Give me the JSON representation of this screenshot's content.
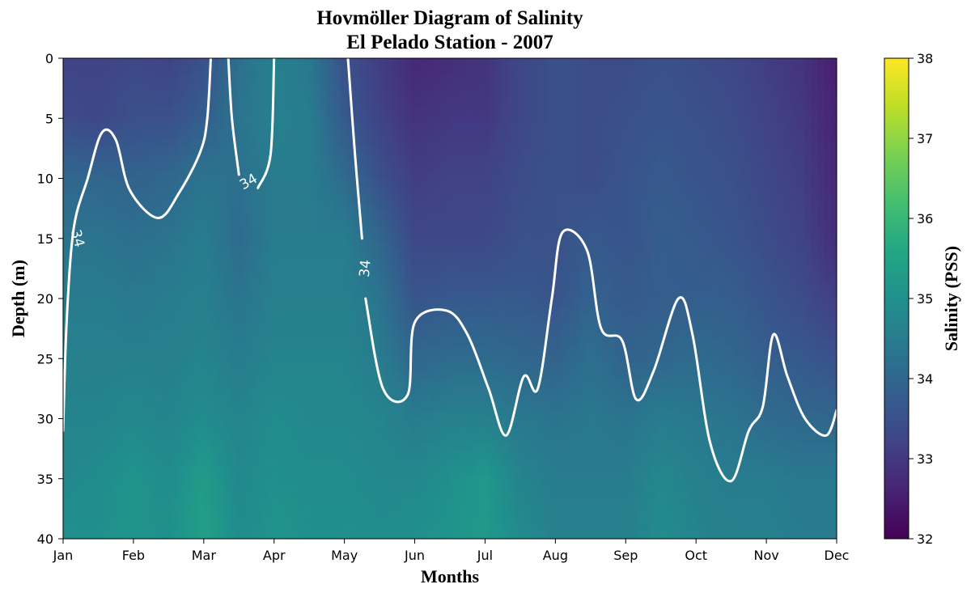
{
  "chart_data": {
    "type": "heatmap",
    "title": "Hovmöller Diagram of Salinity",
    "subtitle": "El Pelado Station - 2007",
    "xlabel": "Months",
    "ylabel": "Depth (m)",
    "colorbar_label": "Salinity (PSS)",
    "colormap": "viridis",
    "x_categories": [
      "Jan",
      "Feb",
      "Mar",
      "Apr",
      "May",
      "Jun",
      "Jul",
      "Aug",
      "Sep",
      "Oct",
      "Nov",
      "Dec"
    ],
    "xlim": [
      0,
      11
    ],
    "ylim": [
      40,
      0
    ],
    "y_ticks": [
      0,
      5,
      10,
      15,
      20,
      25,
      30,
      35,
      40
    ],
    "colorbar_range": [
      32,
      38
    ],
    "colorbar_ticks": [
      32,
      33,
      34,
      35,
      36,
      37,
      38
    ],
    "salinity_field": {
      "x": [
        0,
        0.5,
        1,
        1.5,
        2,
        2.5,
        3,
        3.5,
        4,
        4.5,
        5,
        5.5,
        6,
        6.5,
        7,
        7.5,
        8,
        8.5,
        9,
        9.5,
        10,
        10.5,
        11
      ],
      "depth": [
        0,
        5,
        10,
        15,
        20,
        25,
        30,
        35,
        40
      ],
      "values": [
        [
          33.2,
          33.2,
          33.3,
          33.2,
          33.5,
          34.2,
          34.6,
          34.4,
          33.5,
          33.1,
          32.7,
          32.8,
          32.9,
          33.3,
          33.5,
          33.4,
          33.4,
          33.5,
          33.4,
          33.3,
          33.1,
          32.9,
          32.5
        ],
        [
          33.4,
          33.3,
          33.5,
          33.5,
          33.8,
          34.3,
          34.6,
          34.5,
          33.7,
          33.2,
          32.9,
          33.0,
          33.0,
          33.3,
          33.5,
          33.4,
          33.5,
          33.6,
          33.5,
          33.4,
          33.2,
          33.0,
          32.6
        ],
        [
          34.0,
          34.0,
          33.9,
          34.0,
          34.3,
          34.2,
          34.5,
          34.5,
          34.1,
          33.5,
          33.1,
          33.2,
          33.2,
          33.4,
          33.5,
          33.4,
          33.6,
          33.7,
          33.6,
          33.5,
          33.3,
          33.1,
          32.7
        ],
        [
          34.3,
          34.3,
          34.2,
          34.3,
          34.5,
          34.1,
          34.5,
          34.5,
          34.5,
          34.0,
          33.3,
          33.3,
          33.3,
          33.5,
          33.5,
          33.7,
          33.6,
          33.8,
          33.7,
          33.6,
          33.4,
          33.2,
          32.8
        ],
        [
          34.5,
          34.5,
          34.4,
          34.5,
          34.6,
          34.3,
          34.6,
          34.6,
          34.6,
          34.3,
          33.6,
          33.7,
          33.7,
          33.7,
          33.6,
          33.9,
          33.7,
          33.8,
          33.8,
          33.8,
          33.6,
          33.4,
          33.1
        ],
        [
          34.6,
          34.6,
          34.6,
          34.6,
          34.7,
          34.5,
          34.7,
          34.7,
          34.7,
          34.5,
          34.0,
          34.1,
          34.1,
          34.0,
          33.9,
          34.2,
          33.9,
          34.0,
          34.1,
          34.0,
          33.8,
          33.7,
          33.5
        ],
        [
          34.7,
          34.7,
          34.8,
          34.7,
          34.9,
          34.7,
          34.9,
          34.8,
          34.8,
          34.7,
          34.5,
          34.6,
          34.6,
          34.4,
          34.3,
          34.4,
          34.3,
          34.5,
          34.4,
          34.3,
          34.1,
          34.0,
          34.0
        ],
        [
          34.8,
          34.9,
          35.1,
          34.9,
          35.3,
          34.8,
          35.0,
          34.9,
          34.9,
          34.8,
          34.8,
          35.0,
          35.2,
          34.7,
          34.5,
          34.5,
          34.5,
          34.8,
          34.6,
          34.5,
          34.5,
          34.4,
          34.4
        ],
        [
          35.0,
          35.0,
          35.1,
          35.0,
          35.4,
          34.9,
          35.1,
          35.0,
          35.0,
          34.9,
          35.0,
          35.1,
          35.2,
          34.9,
          34.6,
          34.6,
          34.6,
          34.9,
          34.7,
          34.6,
          34.6,
          34.5,
          34.5
        ]
      ]
    },
    "contour": {
      "level": 34,
      "color": "#ffffff",
      "labels": [
        "34",
        "34",
        "34"
      ],
      "lines": [
        {
          "points": [
            [
              0,
              31
            ],
            [
              0.05,
              22
            ],
            [
              0.15,
              14.2
            ],
            [
              0.35,
              10
            ],
            [
              0.55,
              6.2
            ],
            [
              0.75,
              6.8
            ],
            [
              0.95,
              11
            ],
            [
              1.35,
              13.3
            ],
            [
              1.65,
              11.2
            ],
            [
              1.95,
              7.8
            ],
            [
              2.05,
              5
            ],
            [
              2.1,
              0
            ]
          ]
        },
        {
          "points": [
            [
              2.35,
              0
            ],
            [
              2.4,
              5
            ],
            [
              2.5,
              9.7
            ]
          ]
        },
        {
          "points": [
            [
              2.77,
              10.8
            ],
            [
              2.95,
              8
            ],
            [
              3.0,
              0
            ]
          ]
        },
        {
          "points": [
            [
              4.05,
              0
            ],
            [
              4.15,
              8
            ],
            [
              4.25,
              15
            ]
          ]
        },
        {
          "points": [
            [
              4.3,
              20
            ],
            [
              4.55,
              27.5
            ],
            [
              4.9,
              28
            ],
            [
              5.0,
              22
            ],
            [
              5.45,
              21
            ],
            [
              5.75,
              23
            ],
            [
              6.05,
              27.5
            ],
            [
              6.3,
              31.4
            ],
            [
              6.55,
              26.5
            ],
            [
              6.75,
              27.5
            ],
            [
              6.95,
              20
            ],
            [
              7.1,
              14.5
            ],
            [
              7.45,
              16
            ],
            [
              7.65,
              22.5
            ],
            [
              7.95,
              23.5
            ],
            [
              8.15,
              28.4
            ],
            [
              8.4,
              26
            ],
            [
              8.75,
              20
            ],
            [
              8.95,
              23
            ],
            [
              9.2,
              32
            ],
            [
              9.5,
              35.2
            ],
            [
              9.75,
              31
            ],
            [
              9.95,
              29
            ],
            [
              10.1,
              23
            ],
            [
              10.3,
              26.5
            ],
            [
              10.55,
              30
            ],
            [
              10.85,
              31.4
            ],
            [
              11.0,
              29.3
            ]
          ]
        }
      ]
    }
  }
}
